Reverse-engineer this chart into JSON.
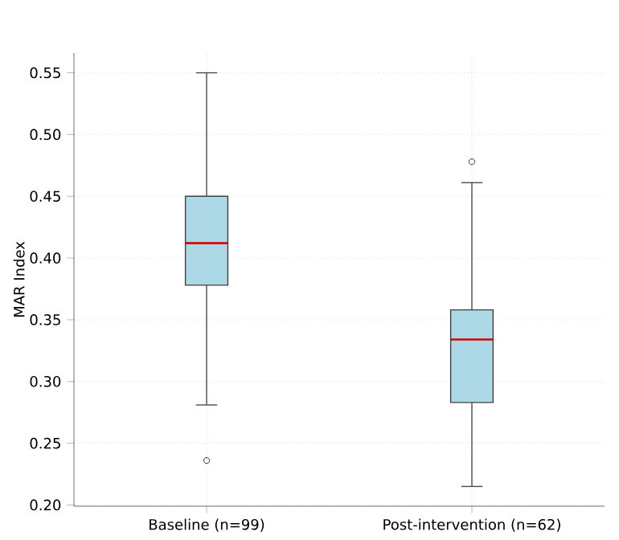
{
  "chart_data": {
    "type": "box",
    "ylabel": "MAR Index",
    "categories": [
      "Baseline (n=99)",
      "Post-intervention (n=62)"
    ],
    "boxes": [
      {
        "low": 0.281,
        "q1": 0.378,
        "median": 0.412,
        "q3": 0.45,
        "high": 0.55,
        "outliers": [
          0.236
        ]
      },
      {
        "low": 0.215,
        "q1": 0.283,
        "median": 0.334,
        "q3": 0.358,
        "high": 0.461,
        "outliers": [
          0.478
        ]
      }
    ],
    "color": "#add8e6",
    "ylim": [
      0.199,
      0.566
    ],
    "yticks": [
      {
        "value": 0.2,
        "label": "0.20"
      },
      0.25,
      {
        "value": 0.3,
        "label": "0.30"
      },
      0.35,
      {
        "value": 0.4,
        "label": "0.40"
      },
      0.45,
      {
        "value": 0.5,
        "label": "0.50"
      },
      0.55
    ],
    "grid": true
  }
}
